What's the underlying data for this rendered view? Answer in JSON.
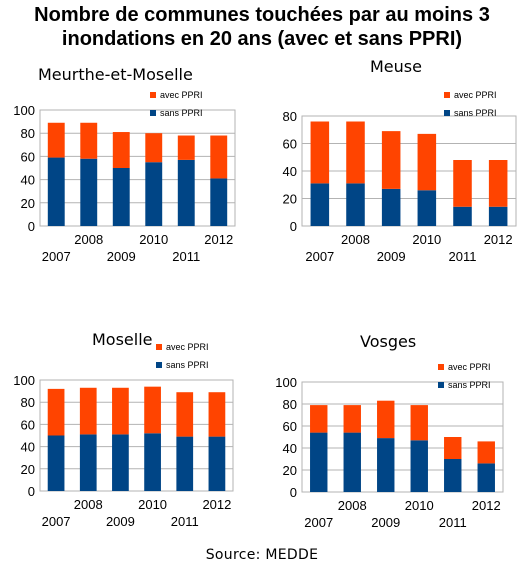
{
  "title": "Nombre de communes touchées par au moins 3 inondations en 20 ans (avec et sans PPRI)",
  "title_lines": [
    "Nombre de communes touchées par au moins 3",
    "inondations en 20 ans (avec et sans PPRI)"
  ],
  "source": "Source: MEDDE",
  "colors": {
    "avec_ppri": "#ff4400",
    "sans_ppri": "#004586",
    "grid": "#b3b3b3",
    "frame": "#b3b3b3"
  },
  "chart_data": [
    {
      "type": "bar",
      "stacked": true,
      "title": "Meurthe-et-Moselle",
      "categories": [
        "2007",
        "2008",
        "2009",
        "2010",
        "2011",
        "2012"
      ],
      "series": [
        {
          "name": "sans PPRI",
          "values": [
            59,
            58,
            50,
            55,
            57,
            41
          ]
        },
        {
          "name": "avec PPRI",
          "values": [
            30,
            31,
            31,
            25,
            21,
            37
          ]
        }
      ],
      "ylim": [
        0,
        100
      ],
      "yticks": [
        0,
        20,
        40,
        60,
        80,
        100
      ],
      "grid": true,
      "legend_position": "top-right"
    },
    {
      "type": "bar",
      "stacked": true,
      "title": "Meuse",
      "categories": [
        "2007",
        "2008",
        "2009",
        "2010",
        "2011",
        "2012"
      ],
      "series": [
        {
          "name": "sans PPRI",
          "values": [
            31,
            31,
            27,
            26,
            14,
            14
          ]
        },
        {
          "name": "avec PPRI",
          "values": [
            45,
            45,
            42,
            41,
            34,
            34
          ]
        }
      ],
      "ylim": [
        0,
        80
      ],
      "yticks": [
        0,
        20,
        40,
        60,
        80
      ],
      "grid": true,
      "legend_position": "top-right"
    },
    {
      "type": "bar",
      "stacked": true,
      "title": "Moselle",
      "categories": [
        "2007",
        "2008",
        "2009",
        "2010",
        "2011",
        "2012"
      ],
      "series": [
        {
          "name": "sans PPRI",
          "values": [
            50,
            51,
            51,
            52,
            49,
            49
          ]
        },
        {
          "name": "avec PPRI",
          "values": [
            42,
            42,
            42,
            42,
            40,
            40
          ]
        }
      ],
      "ylim": [
        0,
        100
      ],
      "yticks": [
        0,
        20,
        40,
        60,
        80,
        100
      ],
      "grid": true,
      "legend_position": "top-right"
    },
    {
      "type": "bar",
      "stacked": true,
      "title": "Vosges",
      "categories": [
        "2007",
        "2008",
        "2009",
        "2010",
        "2011",
        "2012"
      ],
      "series": [
        {
          "name": "sans PPRI",
          "values": [
            54,
            54,
            49,
            47,
            30,
            26
          ]
        },
        {
          "name": "avec PPRI",
          "values": [
            25,
            25,
            34,
            32,
            20,
            20
          ]
        }
      ],
      "ylim": [
        0,
        100
      ],
      "yticks": [
        0,
        20,
        40,
        60,
        80,
        100
      ],
      "grid": true,
      "legend_position": "top-right"
    }
  ]
}
